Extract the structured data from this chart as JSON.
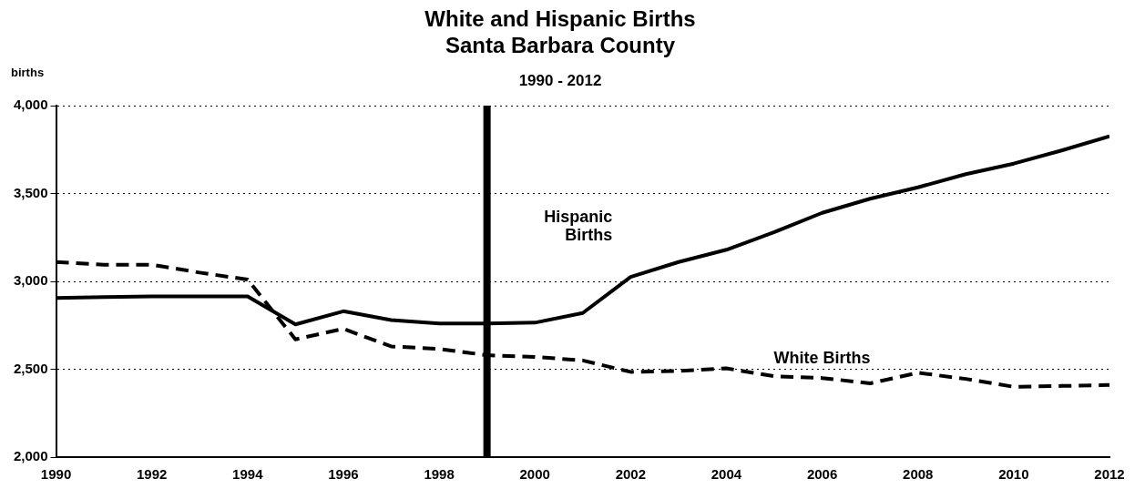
{
  "chart_data": {
    "type": "line",
    "title": "White and Hispanic Births\nSanta Barbara County",
    "subtitle": "1990 - 2012",
    "ylabel": "births",
    "x": [
      1990,
      1991,
      1992,
      1993,
      1994,
      1995,
      1996,
      1997,
      1998,
      1999,
      2000,
      2001,
      2002,
      2003,
      2004,
      2005,
      2006,
      2007,
      2008,
      2009,
      2010,
      2011,
      2012
    ],
    "series": [
      {
        "name": "Hispanic Births",
        "color": "#000000",
        "line_style": "solid",
        "values": [
          2905,
          2910,
          2915,
          2915,
          2915,
          2755,
          2830,
          2780,
          2760,
          2760,
          2765,
          2820,
          3025,
          3110,
          3180,
          3280,
          3390,
          3470,
          3535,
          3610,
          3670,
          3745,
          3825
        ]
      },
      {
        "name": "White Births",
        "color": "#000000",
        "line_style": "dashed",
        "values": [
          3110,
          3095,
          3095,
          3050,
          3010,
          2670,
          2730,
          2630,
          2615,
          2580,
          2570,
          2550,
          2485,
          2490,
          2505,
          2460,
          2450,
          2420,
          2480,
          2445,
          2400,
          2405,
          2410
        ]
      }
    ],
    "xlim": [
      1990,
      2012
    ],
    "xticks": [
      1990,
      1992,
      1994,
      1996,
      1998,
      2000,
      2002,
      2004,
      2006,
      2008,
      2010,
      2012
    ],
    "ylim": [
      2000,
      4000
    ],
    "yticks": [
      {
        "value": 2000,
        "label": "2,000"
      },
      {
        "value": 2500,
        "label": "2,500"
      },
      {
        "value": 3000,
        "label": "3,000"
      },
      {
        "value": 3500,
        "label": "3,500"
      },
      {
        "value": 4000,
        "label": "4,000"
      }
    ],
    "grid": "y",
    "legend": false,
    "marker": "none",
    "ref_lines": [
      {
        "axis": "x",
        "value": 1999,
        "color": "#000000"
      }
    ]
  }
}
